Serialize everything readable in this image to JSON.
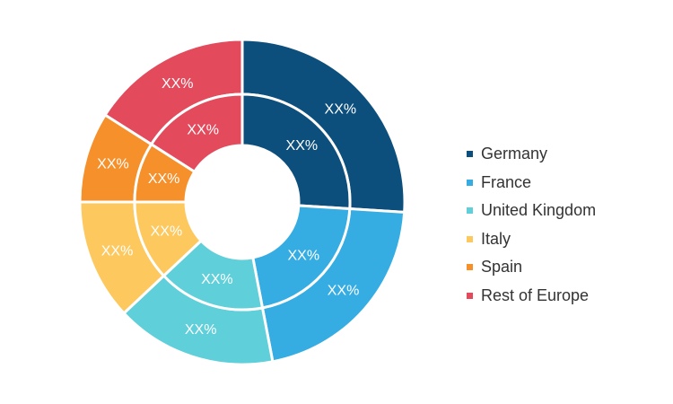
{
  "chart_data": {
    "type": "pie",
    "variant": "double-donut",
    "categories": [
      "Germany",
      "France",
      "United Kingdom",
      "Italy",
      "Spain",
      "Rest of Europe"
    ],
    "colors": [
      "#0d4f7c",
      "#35ade3",
      "#5fcfd9",
      "#fdc85e",
      "#f6902a",
      "#e34a5c"
    ],
    "outer_ring": {
      "values": [
        26,
        21,
        16,
        12,
        9,
        16
      ],
      "labels": [
        "XX%",
        "XX%",
        "XX%",
        "XX%",
        "XX%",
        "XX%"
      ]
    },
    "inner_ring": {
      "values": [
        26,
        21,
        16,
        12,
        9,
        16
      ],
      "labels": [
        "XX%",
        "XX%",
        "XX%",
        "XX%",
        "XX%",
        "XX%"
      ]
    },
    "legend_position": "right"
  },
  "legend": {
    "items": [
      {
        "label": "Germany",
        "color": "#0d4f7c"
      },
      {
        "label": "France",
        "color": "#35ade3"
      },
      {
        "label": "United Kingdom",
        "color": "#5fcfd9"
      },
      {
        "label": "Italy",
        "color": "#fdc85e"
      },
      {
        "label": "Spain",
        "color": "#f6902a"
      },
      {
        "label": "Rest of Europe",
        "color": "#e34a5c"
      }
    ]
  }
}
